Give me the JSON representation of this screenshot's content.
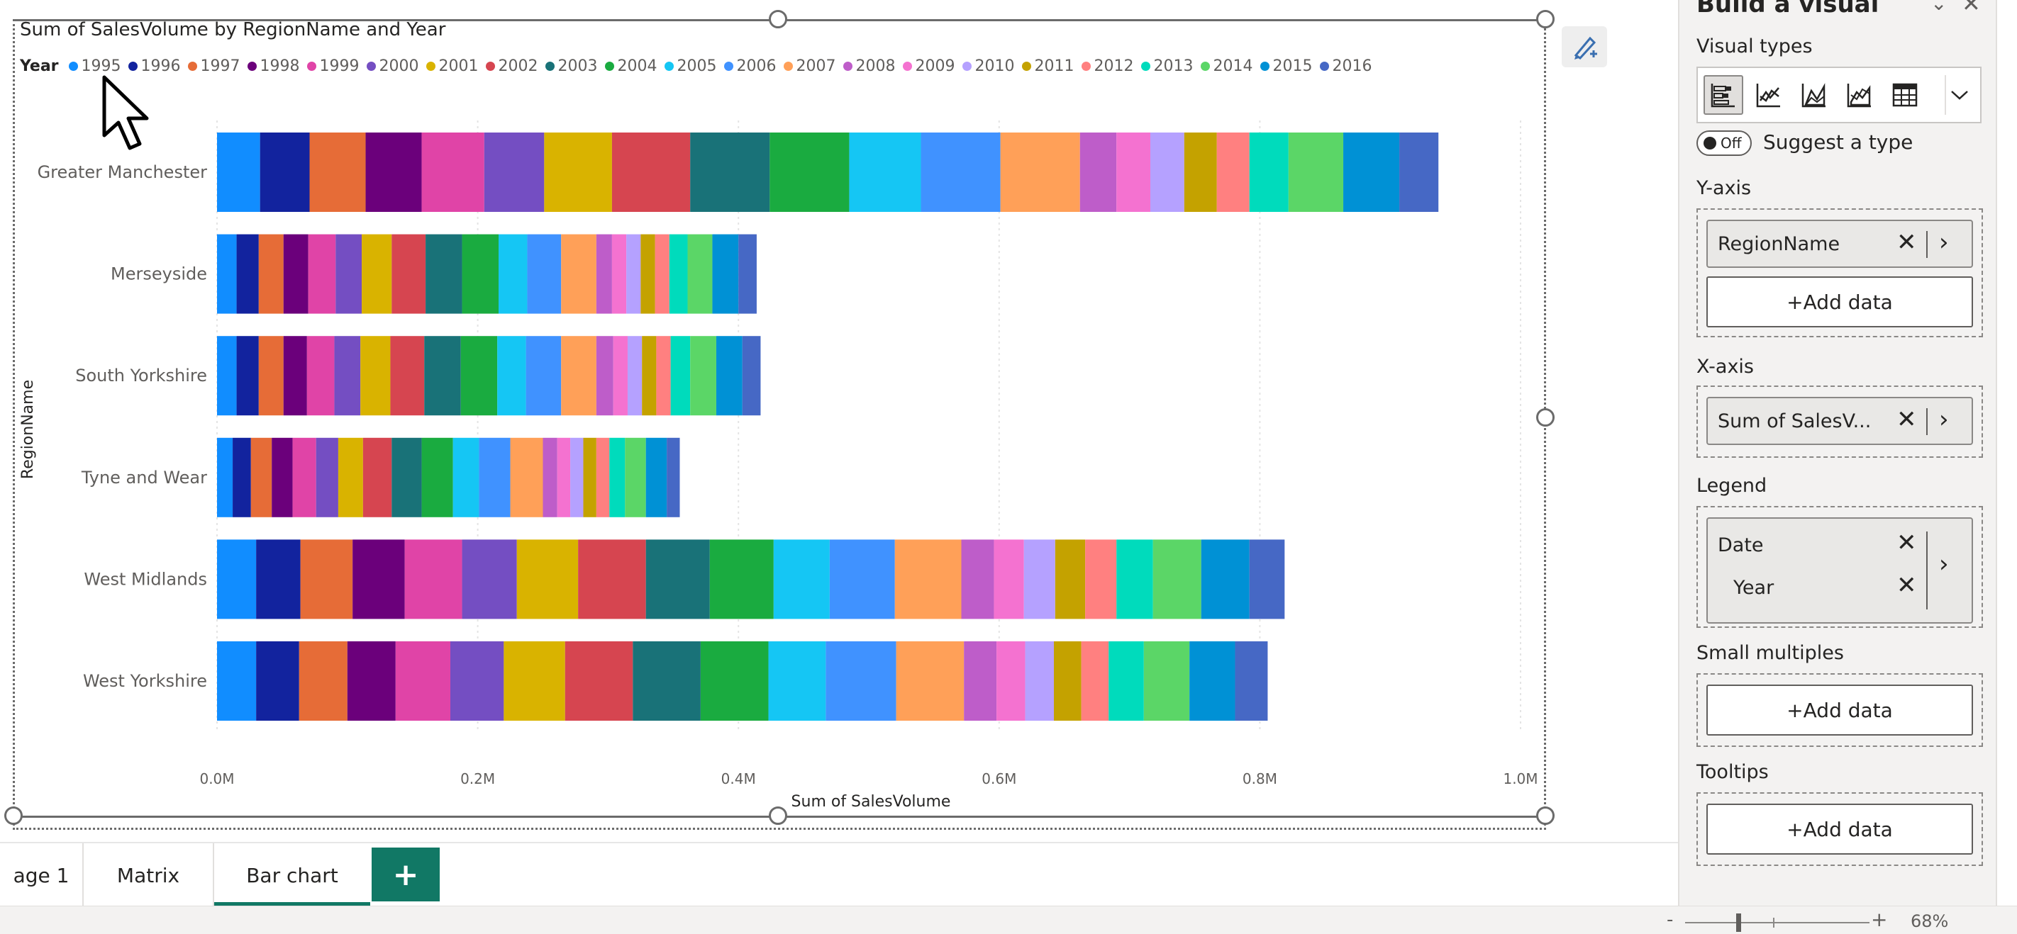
{
  "chart_data": {
    "type": "bar",
    "orientation": "horizontal",
    "stacked": true,
    "title": "Sum of SalesVolume by RegionName and Year",
    "xlabel": "Sum of SalesVolume",
    "ylabel": "RegionName",
    "legend_title": "Year",
    "legend_position": "top-left",
    "xlim": [
      0,
      1000000
    ],
    "x_ticks": [
      {
        "value": 0,
        "label": "0.0M"
      },
      {
        "value": 200000,
        "label": "0.2M"
      },
      {
        "value": 400000,
        "label": "0.4M"
      },
      {
        "value": 600000,
        "label": "0.6M"
      },
      {
        "value": 800000,
        "label": "0.8M"
      },
      {
        "value": 1000000,
        "label": "1.0M"
      }
    ],
    "grid": "vertical dotted",
    "categories": [
      "Greater Manchester",
      "Merseyside",
      "South Yorkshire",
      "Tyne and Wear",
      "West Midlands",
      "West Yorkshire"
    ],
    "series": [
      {
        "name": "1995",
        "color": "#118DFF",
        "values": [
          33000,
          15000,
          15000,
          12000,
          30000,
          30000
        ]
      },
      {
        "name": "1996",
        "color": "#12239E",
        "values": [
          38000,
          17000,
          17000,
          14000,
          34000,
          33000
        ]
      },
      {
        "name": "1997",
        "color": "#E66C37",
        "values": [
          43000,
          19000,
          19000,
          16000,
          40000,
          37000
        ]
      },
      {
        "name": "1998",
        "color": "#6B007B",
        "values": [
          43000,
          19000,
          18000,
          16000,
          40000,
          37000
        ]
      },
      {
        "name": "1999",
        "color": "#E044A7",
        "values": [
          48000,
          21000,
          21000,
          18000,
          44000,
          42000
        ]
      },
      {
        "name": "2000",
        "color": "#744EC2",
        "values": [
          46000,
          20000,
          20000,
          17000,
          42000,
          41000
        ]
      },
      {
        "name": "2001",
        "color": "#D9B300",
        "values": [
          52000,
          23000,
          23000,
          19000,
          47000,
          47000
        ]
      },
      {
        "name": "2002",
        "color": "#D64550",
        "values": [
          60000,
          26000,
          26000,
          22000,
          52000,
          52000
        ]
      },
      {
        "name": "2003",
        "color": "#197278",
        "values": [
          61000,
          28000,
          28000,
          23000,
          49000,
          52000
        ]
      },
      {
        "name": "2004",
        "color": "#1AAB40",
        "values": [
          61000,
          28000,
          28000,
          24000,
          49000,
          52000
        ]
      },
      {
        "name": "2005",
        "color": "#15C6F4",
        "values": [
          55000,
          22000,
          22000,
          20000,
          43000,
          44000
        ]
      },
      {
        "name": "2006",
        "color": "#4092FF",
        "values": [
          61000,
          26000,
          27000,
          24000,
          50000,
          54000
        ]
      },
      {
        "name": "2007",
        "color": "#FFA058",
        "values": [
          61000,
          27000,
          27000,
          25000,
          51000,
          52000
        ]
      },
      {
        "name": "2008",
        "color": "#BE5DC9",
        "values": [
          28000,
          12000,
          13000,
          11000,
          25000,
          25000
        ]
      },
      {
        "name": "2009",
        "color": "#F472D0",
        "values": [
          26000,
          11000,
          11000,
          10000,
          23000,
          22000
        ]
      },
      {
        "name": "2010",
        "color": "#B5A1FF",
        "values": [
          26000,
          11000,
          11000,
          10000,
          24000,
          22000
        ]
      },
      {
        "name": "2011",
        "color": "#C4A200",
        "values": [
          25000,
          11000,
          11000,
          10000,
          23000,
          21000
        ]
      },
      {
        "name": "2012",
        "color": "#FF8080",
        "values": [
          25000,
          11000,
          11000,
          10000,
          24000,
          21000
        ]
      },
      {
        "name": "2013",
        "color": "#00DBBC",
        "values": [
          30000,
          14000,
          15000,
          12000,
          28000,
          27000
        ]
      },
      {
        "name": "2014",
        "color": "#5BD667",
        "values": [
          42000,
          19000,
          20000,
          16000,
          37000,
          35000
        ]
      },
      {
        "name": "2015",
        "color": "#0091D5",
        "values": [
          43000,
          20000,
          20000,
          16000,
          37000,
          35000
        ]
      },
      {
        "name": "2016",
        "color": "#4668C5",
        "values": [
          30000,
          14000,
          14000,
          10000,
          27000,
          25000
        ]
      }
    ]
  },
  "page_tabs": [
    {
      "label": "age 1"
    },
    {
      "label": "Matrix"
    },
    {
      "label": "Bar chart"
    }
  ],
  "add_page_label": "+",
  "build_pane": {
    "title": "Build a visual",
    "visual_types_label": "Visual types",
    "visual_type_icons": [
      "stacked-bar-chart-icon",
      "line-chart-icon",
      "area-chart-icon",
      "line-and-area-chart-icon",
      "table-icon"
    ],
    "suggest_toggle_text": "Off",
    "suggest_label": "Suggest a type",
    "y_axis": {
      "label": "Y-axis",
      "field": "RegionName",
      "add_label": "+Add data"
    },
    "x_axis": {
      "label": "X-axis",
      "field": "Sum of SalesV..."
    },
    "legend": {
      "label": "Legend",
      "field": "Date",
      "subfield": "Year"
    },
    "small_multiples": {
      "label": "Small multiples",
      "add_label": "+Add data"
    },
    "tooltips": {
      "label": "Tooltips",
      "add_label": "+Add data"
    }
  },
  "status_bar": {
    "zoom_minus": "-",
    "zoom_plus": "+",
    "zoom_level": "68%"
  }
}
